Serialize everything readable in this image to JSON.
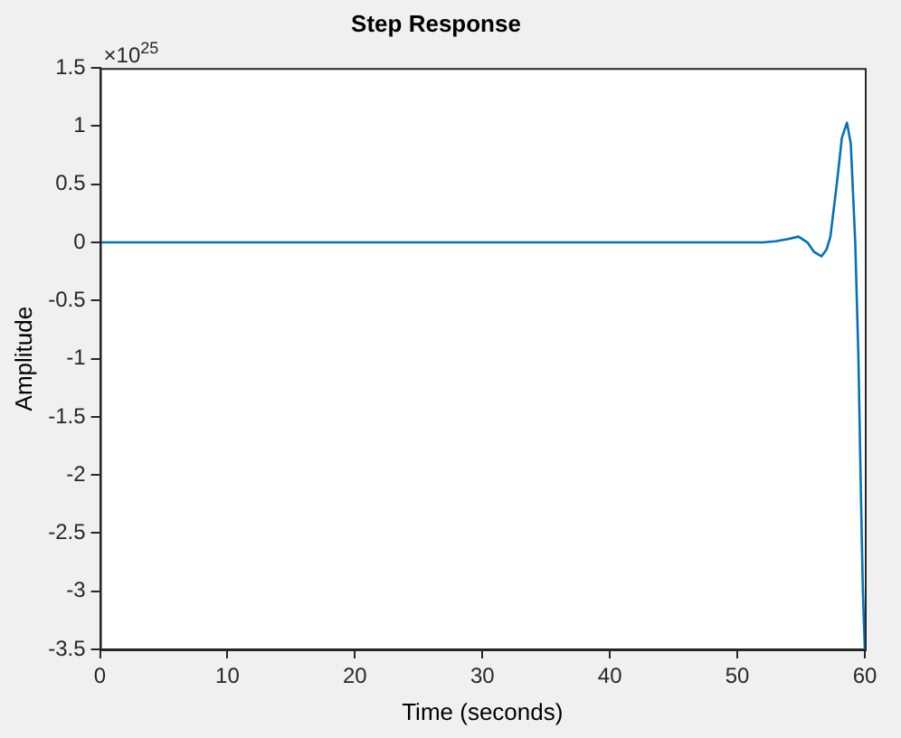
{
  "chart_data": {
    "type": "line",
    "title": "Step Response",
    "xlabel": "Time (seconds)",
    "ylabel": "Amplitude",
    "annotations": [
      "×10$^{25}$"
    ],
    "x": [
      0,
      10,
      20,
      30,
      40,
      50,
      52,
      53,
      54,
      54.8,
      55.5,
      56,
      56.6,
      57,
      57.3,
      57.8,
      58.2,
      58.6,
      58.9,
      59.25,
      59.5,
      59.7,
      59.85,
      60
    ],
    "series": [
      {
        "color": "#0072bd",
        "values": [
          0,
          0,
          0,
          0,
          0,
          0,
          0,
          0.01,
          0.03,
          0.05,
          0,
          -0.08,
          -0.12,
          -0.06,
          0.05,
          0.5,
          0.9,
          1.03,
          0.85,
          0,
          -1.0,
          -2.2,
          -3.0,
          -3.5
        ]
      }
    ],
    "xlim": [
      0,
      60
    ],
    "xticks": [
      0,
      10,
      20,
      30,
      40,
      50,
      60
    ],
    "ylim": [
      -3.5,
      1.5
    ],
    "yticks": [
      -3.5,
      -3,
      -2.5,
      -2,
      -1.5,
      -1,
      -0.5,
      0,
      0.5,
      1,
      1.5
    ],
    "grid": false,
    "legend": false,
    "marker": "none",
    "line_style": "solid"
  }
}
